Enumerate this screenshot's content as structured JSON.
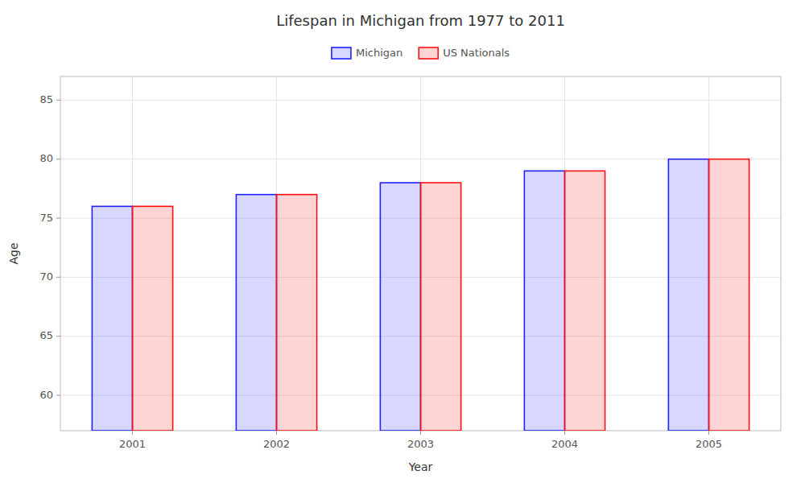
{
  "chart_data": {
    "type": "bar",
    "title": "Lifespan in Michigan from 1977 to 2011",
    "x_label": "Year",
    "y_label": "Age",
    "categories": [
      "2001",
      "2002",
      "2003",
      "2004",
      "2005"
    ],
    "series": [
      {
        "name": "Michigan",
        "color": "#2222ff",
        "values": [
          76,
          77,
          78,
          79,
          80
        ]
      },
      {
        "name": "US Nationals",
        "color": "#ff1111",
        "values": [
          76,
          77,
          78,
          79,
          80
        ]
      }
    ],
    "ylim": [
      57,
      87
    ],
    "yticks": [
      60,
      65,
      70,
      75,
      80,
      85
    ],
    "grid": true,
    "legend": "top"
  }
}
